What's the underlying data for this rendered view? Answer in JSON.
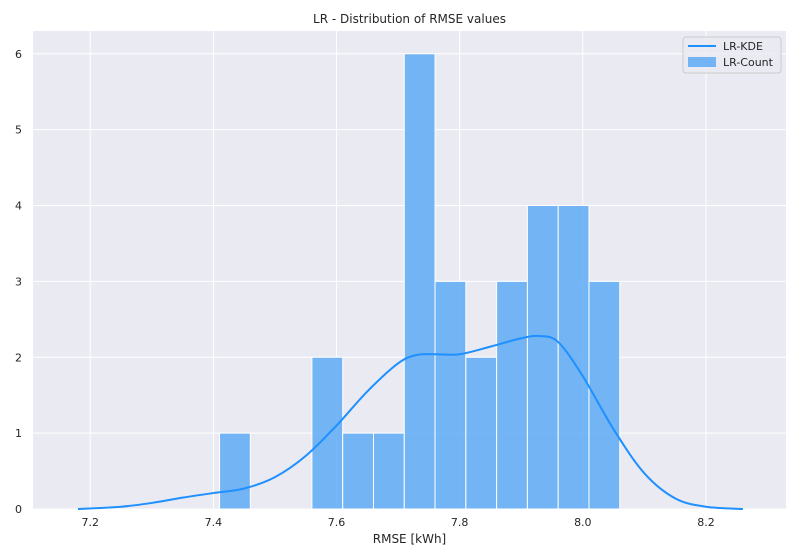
{
  "chart_data": {
    "type": "bar",
    "title": "LR - Distribution of RMSE values",
    "xlabel": "RMSE [kWh]",
    "ylabel": "",
    "xlim": [
      7.107,
      8.33
    ],
    "ylim": [
      0,
      6.3
    ],
    "xticks": [
      7.2,
      7.4,
      7.6,
      7.8,
      8.0,
      8.2
    ],
    "xtick_labels": [
      "7.2",
      "7.4",
      "7.6",
      "7.8",
      "8.0",
      "8.2"
    ],
    "yticks": [
      0,
      1,
      2,
      3,
      4,
      5,
      6
    ],
    "ytick_labels": [
      "0",
      "1",
      "2",
      "3",
      "4",
      "5",
      "6"
    ],
    "grid": true,
    "legend_position": "top-right",
    "series": [
      {
        "name": "LR-Count",
        "kind": "histogram",
        "color": "#66AEF5",
        "bins": [
          {
            "x0": 7.41,
            "x1": 7.46,
            "count": 1
          },
          {
            "x0": 7.46,
            "x1": 7.51,
            "count": 0
          },
          {
            "x0": 7.51,
            "x1": 7.56,
            "count": 0
          },
          {
            "x0": 7.56,
            "x1": 7.61,
            "count": 2
          },
          {
            "x0": 7.61,
            "x1": 7.66,
            "count": 1
          },
          {
            "x0": 7.66,
            "x1": 7.71,
            "count": 1
          },
          {
            "x0": 7.71,
            "x1": 7.76,
            "count": 6
          },
          {
            "x0": 7.76,
            "x1": 7.81,
            "count": 3
          },
          {
            "x0": 7.81,
            "x1": 7.86,
            "count": 2
          },
          {
            "x0": 7.86,
            "x1": 7.91,
            "count": 3
          },
          {
            "x0": 7.91,
            "x1": 7.96,
            "count": 4
          },
          {
            "x0": 7.96,
            "x1": 8.01,
            "count": 4
          },
          {
            "x0": 8.01,
            "x1": 8.06,
            "count": 3
          }
        ]
      },
      {
        "name": "LR-KDE",
        "kind": "line",
        "color": "#1E90FF",
        "x": [
          7.18,
          7.25,
          7.3,
          7.35,
          7.4,
          7.45,
          7.5,
          7.55,
          7.6,
          7.65,
          7.7,
          7.73,
          7.76,
          7.8,
          7.85,
          7.9,
          7.93,
          7.96,
          8.0,
          8.05,
          8.1,
          8.15,
          8.2,
          8.26
        ],
        "y": [
          0.0,
          0.03,
          0.08,
          0.15,
          0.21,
          0.27,
          0.42,
          0.7,
          1.1,
          1.55,
          1.92,
          2.03,
          2.04,
          2.04,
          2.14,
          2.25,
          2.28,
          2.2,
          1.75,
          1.05,
          0.47,
          0.14,
          0.03,
          0.0
        ]
      }
    ]
  }
}
